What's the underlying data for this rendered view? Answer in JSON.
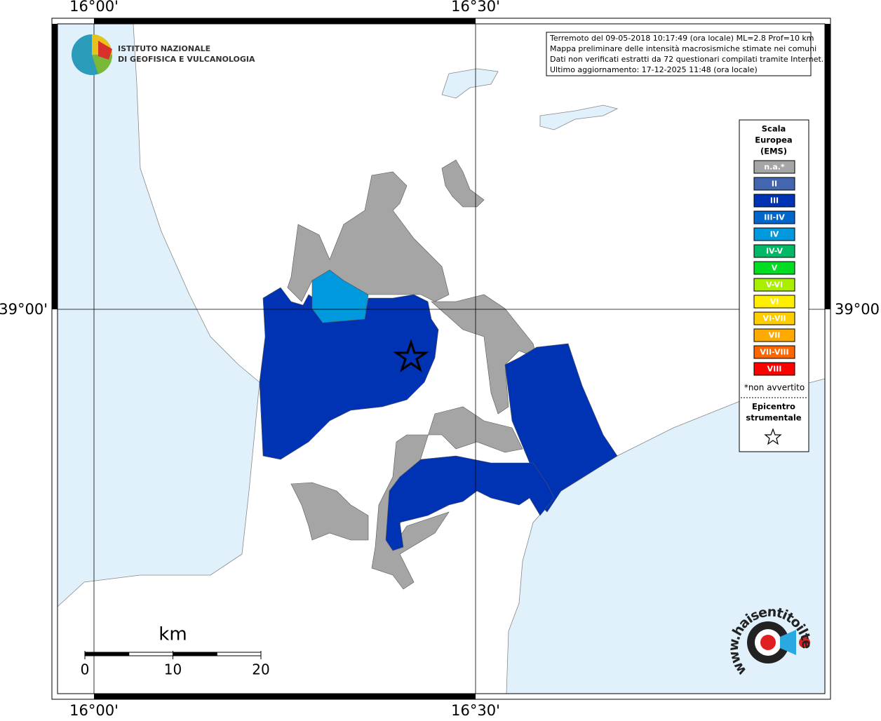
{
  "grid_labels": {
    "top": [
      "16°00'",
      "16°30'"
    ],
    "bottom": [
      "16°00'",
      "16°30'"
    ],
    "left": "39°00'",
    "right": "39°00'"
  },
  "logo": {
    "line1": "ISTITUTO NAZIONALE",
    "line2": "DI GEOFISICA E VULCANOLOGIA"
  },
  "info": [
    "Terremoto del 09-05-2018 10:17:49 (ora locale) ML=2.8 Prof=10 km",
    "Mappa preliminare delle intensità macrosismiche stimate nei comuni",
    "Dati non verificati estratti da 72 questionari compilati tramite Internet.",
    "Ultimo aggiornamento: 17-12-2025 11:48 (ora locale)"
  ],
  "legend": {
    "title": [
      "Scala",
      "Europea",
      "(EMS)"
    ],
    "items": [
      {
        "label": "n.a.*",
        "color": "#a5a5a5"
      },
      {
        "label": "II",
        "color": "#4466b0"
      },
      {
        "label": "III",
        "color": "#0033b4"
      },
      {
        "label": "III-IV",
        "color": "#0066cc"
      },
      {
        "label": "IV",
        "color": "#0099dd"
      },
      {
        "label": "IV-V",
        "color": "#00b866"
      },
      {
        "label": "V",
        "color": "#00dd22"
      },
      {
        "label": "V-VI",
        "color": "#aaee00"
      },
      {
        "label": "VI",
        "color": "#ffee00"
      },
      {
        "label": "VI-VII",
        "color": "#ffcc00"
      },
      {
        "label": "VII",
        "color": "#ffaa00"
      },
      {
        "label": "VII-VIII",
        "color": "#ff6600"
      },
      {
        "label": "VIII",
        "color": "#ff0000"
      }
    ],
    "note": "*non avvertito",
    "epicentre": [
      "Epicentro",
      "strumentale"
    ]
  },
  "scale": {
    "unit": "km",
    "ticks": [
      0,
      10,
      20
    ]
  },
  "site_logo": "www.haisentitoilterremoto.it"
}
